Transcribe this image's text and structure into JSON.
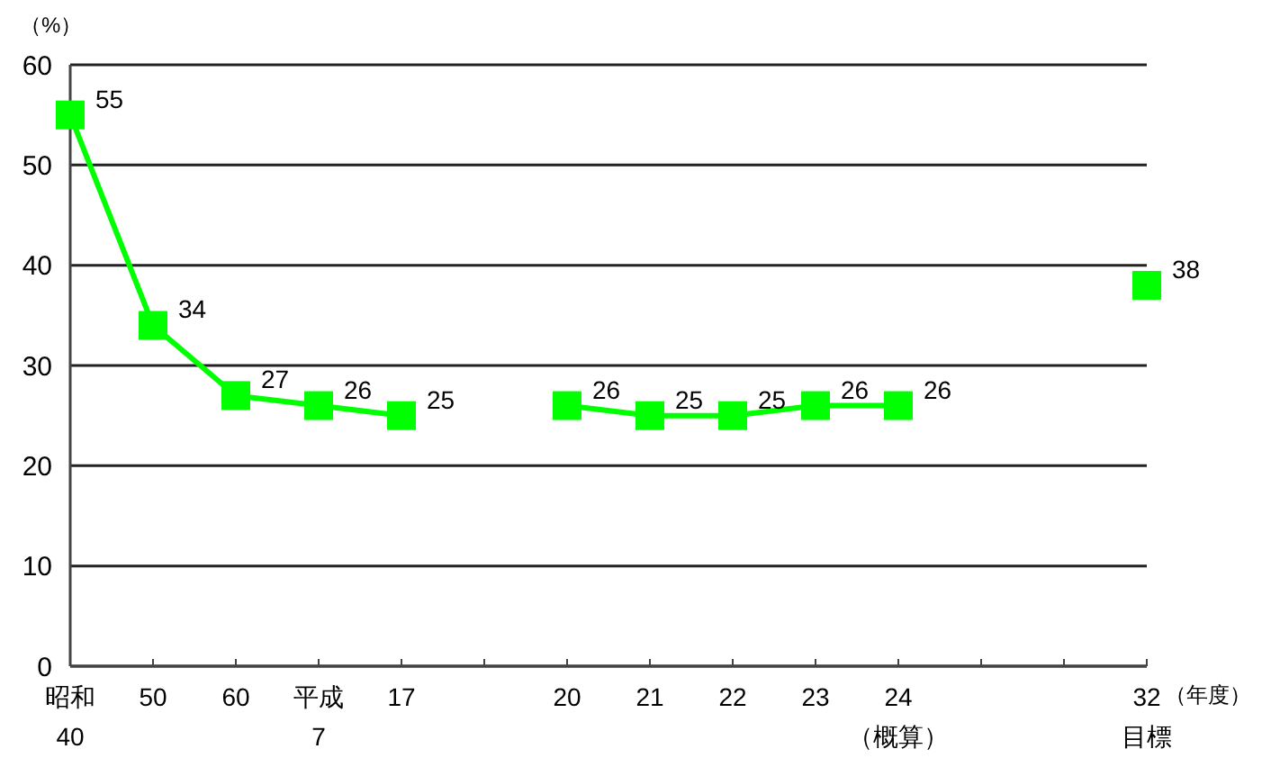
{
  "chart_data": {
    "type": "line",
    "ylabel": "（%）",
    "xlabel": "（年度）",
    "categories": [
      "昭和\n40",
      "50",
      "60",
      "平成\n7",
      "17",
      null,
      "20",
      "21",
      "22",
      "23",
      "24\n（概算）",
      null,
      null,
      "32\n目標"
    ],
    "series": [
      {
        "color": "#00ff00",
        "values": [
          55,
          34,
          27,
          26,
          25,
          null,
          26,
          25,
          25,
          26,
          26,
          null,
          null,
          38
        ]
      }
    ],
    "ylim": [
      0,
      60
    ],
    "yticks": [
      0,
      10,
      20,
      30,
      40,
      50,
      60
    ],
    "grid": "y",
    "marker": "square",
    "line_style": "solid",
    "data_labels": true
  }
}
